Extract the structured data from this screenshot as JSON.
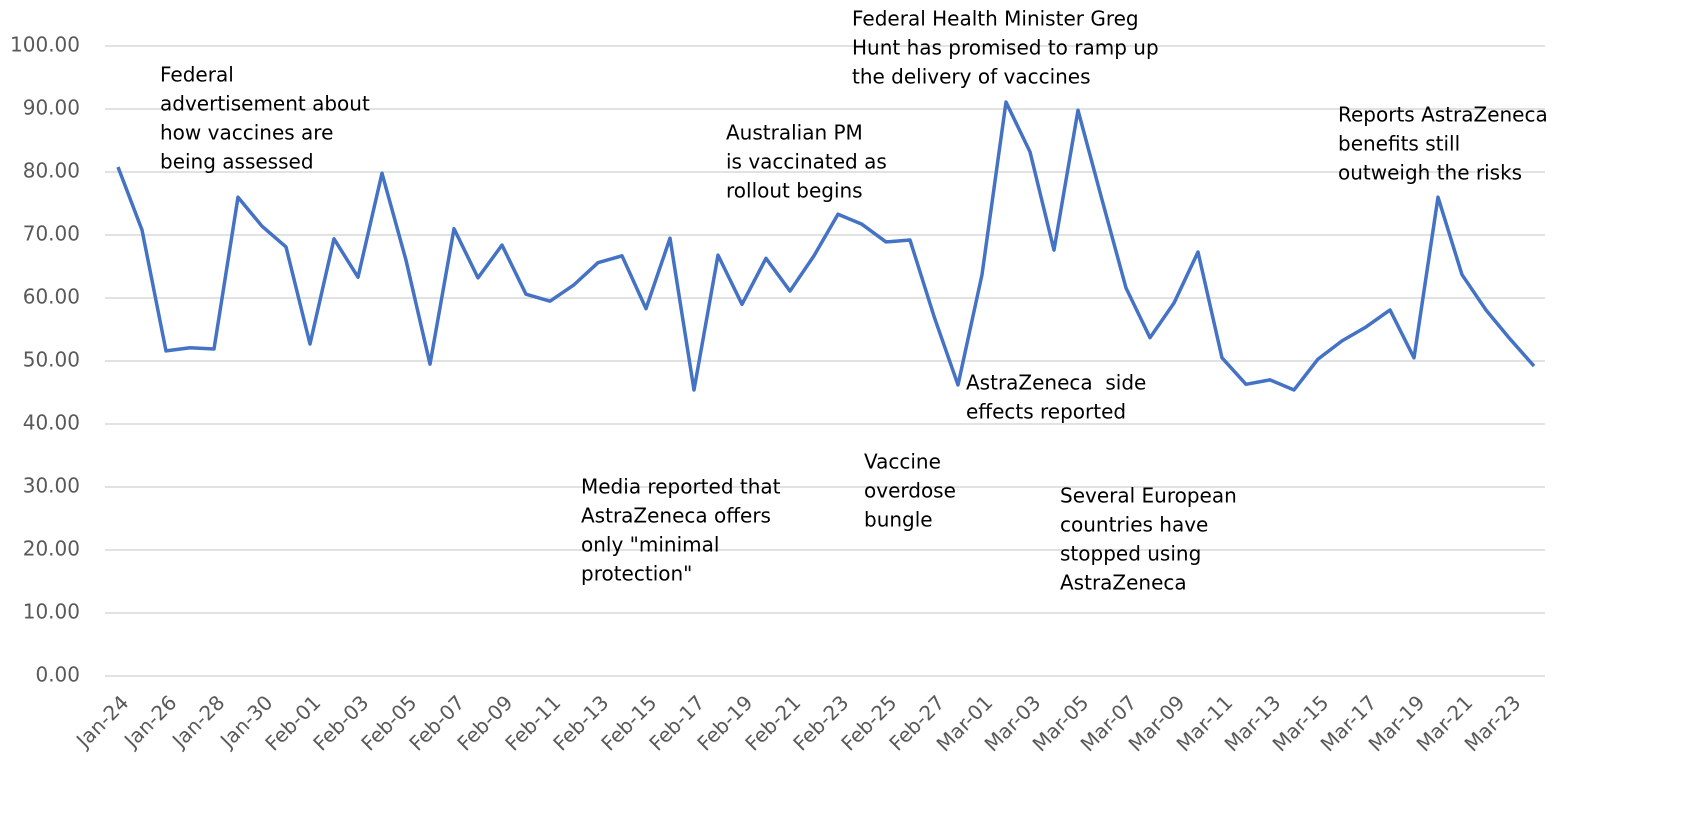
{
  "chart_data": {
    "type": "line",
    "categories": [
      "Jan-24",
      null,
      "Jan-26",
      null,
      "Jan-28",
      null,
      "Jan-30",
      null,
      "Feb-01",
      null,
      "Feb-03",
      null,
      "Feb-05",
      null,
      "Feb-07",
      null,
      "Feb-09",
      null,
      "Feb-11",
      null,
      "Feb-13",
      null,
      "Feb-15",
      null,
      "Feb-17",
      null,
      "Feb-19",
      null,
      "Feb-21",
      null,
      "Feb-23",
      null,
      "Feb-25",
      null,
      "Feb-27",
      null,
      "Mar-01",
      null,
      "Mar-03",
      null,
      "Mar-05",
      null,
      "Mar-07",
      null,
      "Mar-09",
      null,
      "Mar-11",
      null,
      "Mar-13",
      null,
      "Mar-15",
      null,
      "Mar-17",
      null,
      "Mar-19",
      null,
      "Mar-21",
      null,
      "Mar-23",
      null
    ],
    "series": [
      {
        "color": "#4472c4",
        "values": [
          80.8,
          70.8,
          51.6,
          52.1,
          51.9,
          76.0,
          71.4,
          68.1,
          52.7,
          69.4,
          63.3,
          79.8,
          66.0,
          49.5,
          71.0,
          63.2,
          68.4,
          60.6,
          59.5,
          62.1,
          65.6,
          66.7,
          58.3,
          69.5,
          45.4,
          66.8,
          59.0,
          66.3,
          61.1,
          66.7,
          73.3,
          71.7,
          68.9,
          69.2,
          57.1,
          46.2,
          63.7,
          91.1,
          83.2,
          67.6,
          89.8,
          75.6,
          61.6,
          53.7,
          59.2,
          67.3,
          50.5,
          46.3,
          47.0,
          45.4,
          50.3,
          53.2,
          55.4,
          58.1,
          50.5,
          76.0,
          63.7,
          58.1,
          53.5,
          49.2
        ]
      }
    ],
    "ylim": [
      0,
      100
    ],
    "yticks": [
      {
        "value": 0,
        "label": "0.00"
      },
      {
        "value": 10,
        "label": "10.00"
      },
      {
        "value": 20,
        "label": "20.00"
      },
      {
        "value": 30,
        "label": "30.00"
      },
      {
        "value": 40,
        "label": "40.00"
      },
      {
        "value": 50,
        "label": "50.00"
      },
      {
        "value": 60,
        "label": "60.00"
      },
      {
        "value": 70,
        "label": "70.00"
      },
      {
        "value": 80,
        "label": "80.00"
      },
      {
        "value": 90,
        "label": "90.00"
      },
      {
        "value": 100,
        "label": "100.00"
      }
    ],
    "grid": true,
    "annotations": [
      [
        "Federal",
        "advertisement about",
        "how vaccines are",
        "being assessed"
      ],
      [
        "Australian PM",
        "is vaccinated as",
        "rollout begins"
      ],
      [
        "Federal Health Minister Greg",
        "Hunt has promised to ramp up",
        "the delivery of vaccines"
      ],
      [
        "Reports AstraZeneca",
        "benefits still",
        "outweigh the risks"
      ],
      [
        "AstraZeneca  side",
        "effects reported"
      ],
      [
        "Media reported that",
        "AstraZeneca offers",
        "only \"minimal",
        "protection\""
      ],
      [
        "Vaccine",
        "overdose",
        "bungle"
      ],
      [
        "Several European",
        "countries have",
        "stopped using",
        "AstraZeneca"
      ]
    ]
  }
}
